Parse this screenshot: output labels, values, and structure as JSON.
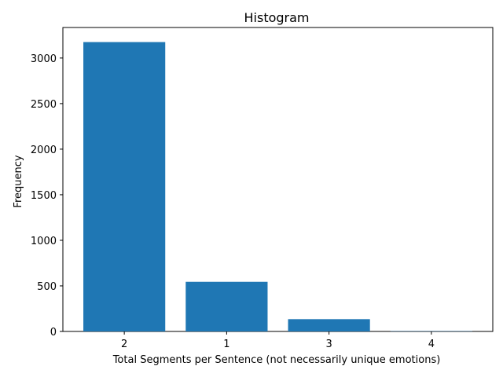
{
  "chart_data": {
    "type": "bar",
    "title": "Histogram",
    "xlabel": "Total Segments per Sentence (not necessarily unique emotions)",
    "ylabel": "Frequency",
    "categories": [
      "2",
      "1",
      "3",
      "4"
    ],
    "values": [
      3175,
      545,
      135,
      3
    ],
    "ylim": [
      0,
      3335
    ],
    "yticks": [
      0,
      500,
      1000,
      1500,
      2000,
      2500,
      3000
    ],
    "bar_color": "#1f77b4",
    "grid": false,
    "legend": "none"
  }
}
